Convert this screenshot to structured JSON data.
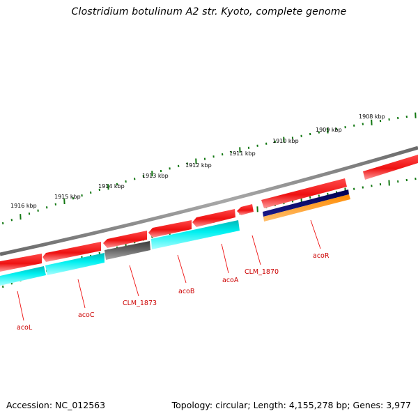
{
  "title": "Clostridium botulinum A2 str. Kyoto, complete genome",
  "footer": {
    "accession": "Accession: NC_012563",
    "topology": "Topology: circular; Length: 4,155,278 bp; Genes: 3,977"
  },
  "colors": {
    "backbone": "#808080",
    "cds_forward": "#ee1111",
    "cds_reverse": "#00eeee",
    "cds_gray": "#666666",
    "cds_navy": "#0a0a70",
    "cds_orange": "#ff9a1a",
    "tick": "#117711",
    "label": "#cc0000"
  },
  "tick_labels": [
    "1916 kbp",
    "1915 kbp",
    "1914 kbp",
    "1913 kbp",
    "1912 kbp",
    "1911 kbp",
    "1910 kbp",
    "1909 kbp",
    "1908 kbp"
  ],
  "gene_labels": [
    "acoL",
    "acoC",
    "CLM_1873",
    "acoB",
    "acoA",
    "CLM_1870",
    "acoR"
  ]
}
